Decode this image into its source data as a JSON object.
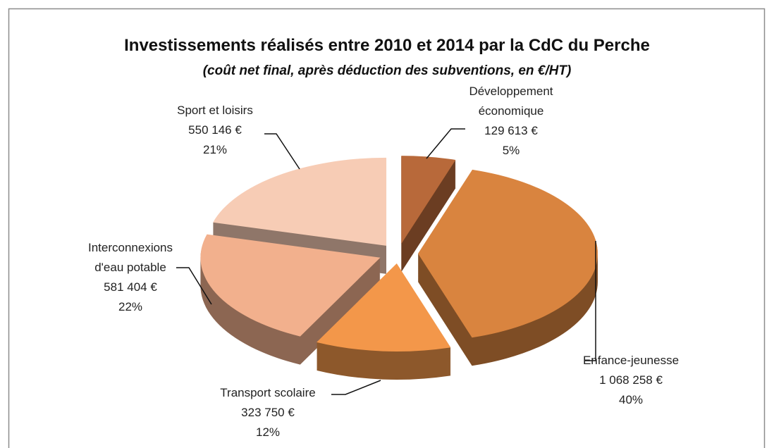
{
  "chart_data": {
    "type": "pie3d",
    "title": "Investissements réalisés entre 2010 et 2014 par la CdC du Perche",
    "subtitle": "(coût net final, après déduction des subventions, en €/HT)",
    "categories": [
      "Développement économique",
      "Enfance-jeunesse",
      "Transport scolaire",
      "Interconnexions d'eau potable",
      "Sport et loisirs"
    ],
    "values": [
      129613,
      1068258,
      323750,
      581404,
      550146
    ],
    "value_labels": [
      "129 613 €",
      "1 068 258 €",
      "323 750 €",
      "581 404 €",
      "550 146 €"
    ],
    "percent_labels": [
      "5%",
      "40%",
      "12%",
      "22%",
      "21%"
    ],
    "colors": [
      "#b8693a",
      "#d9843f",
      "#f3974a",
      "#f2b08d",
      "#f7ccb5"
    ]
  }
}
